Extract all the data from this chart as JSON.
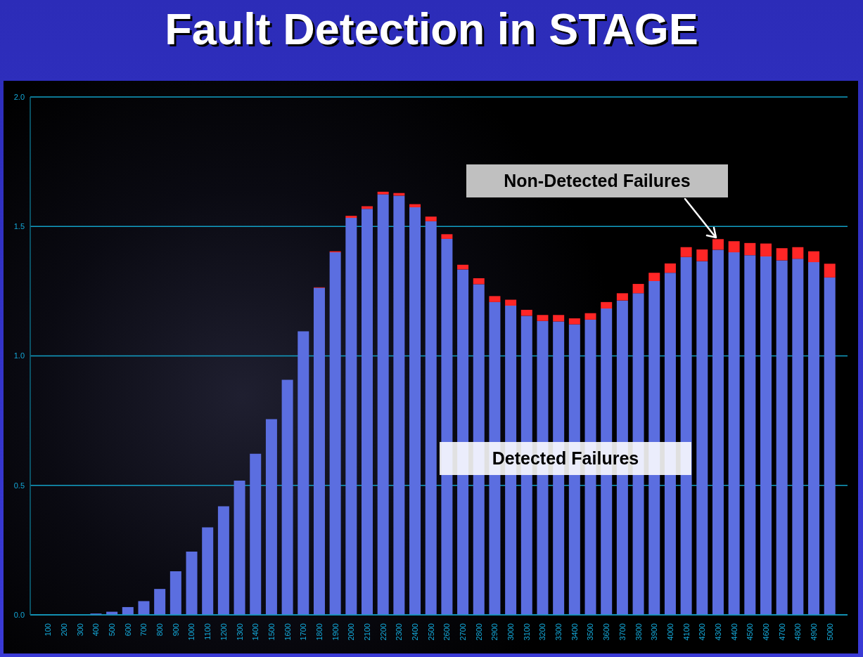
{
  "chart_data": {
    "type": "bar",
    "title": "Fault Detection in STAGE",
    "categories": [
      "100",
      "200",
      "300",
      "400",
      "500",
      "600",
      "700",
      "800",
      "900",
      "1000",
      "1100",
      "1200",
      "1300",
      "1400",
      "1500",
      "1600",
      "1700",
      "1800",
      "1900",
      "2000",
      "2100",
      "2200",
      "2300",
      "2400",
      "2500",
      "2600",
      "2700",
      "2800",
      "2900",
      "3000",
      "3100",
      "3200",
      "3300",
      "3400",
      "3500",
      "3600",
      "3700",
      "3800",
      "3900",
      "4000",
      "4100",
      "4200",
      "4300",
      "4400",
      "4500",
      "4600",
      "4700",
      "4800",
      "4900",
      "5000"
    ],
    "series": [
      {
        "name": "Detected Failures",
        "color": "#5b6ee0",
        "values": [
          0,
          0,
          0,
          0.005,
          0.012,
          0.03,
          0.053,
          0.1,
          0.168,
          0.244,
          0.338,
          0.419,
          0.518,
          0.622,
          0.756,
          0.908,
          1.095,
          1.263,
          1.4,
          1.533,
          1.568,
          1.624,
          1.619,
          1.574,
          1.52,
          1.452,
          1.334,
          1.277,
          1.208,
          1.194,
          1.155,
          1.135,
          1.133,
          1.122,
          1.14,
          1.183,
          1.214,
          1.242,
          1.289,
          1.321,
          1.382,
          1.366,
          1.41,
          1.4,
          1.389,
          1.384,
          1.369,
          1.375,
          1.362,
          1.303
        ]
      },
      {
        "color": "#ff2626",
        "values": [
          0,
          0,
          0,
          0,
          0,
          0,
          0,
          0,
          0,
          0,
          0,
          0,
          0,
          0,
          0,
          0,
          0,
          0.002,
          0.004,
          0.008,
          0.01,
          0.01,
          0.01,
          0.012,
          0.018,
          0.018,
          0.018,
          0.023,
          0.023,
          0.023,
          0.023,
          0.023,
          0.025,
          0.023,
          0.025,
          0.025,
          0.028,
          0.036,
          0.032,
          0.036,
          0.038,
          0.045,
          0.041,
          0.043,
          0.047,
          0.05,
          0.047,
          0.045,
          0.042,
          0.053
        ]
      }
    ],
    "stacked": true,
    "ylim": [
      0,
      2
    ],
    "yticks": [
      {
        "value": 0,
        "label": "0.0"
      },
      {
        "value": 0.5,
        "label": "0.5"
      },
      {
        "value": 1,
        "label": "1.0"
      },
      {
        "value": 1.5,
        "label": "1.5"
      },
      {
        "value": 2,
        "label": "2.0"
      }
    ],
    "grid": "y",
    "annotations": [
      {
        "text": "Non-Detected Failures",
        "x": "4300",
        "y": 1.451
      }
    ]
  }
}
